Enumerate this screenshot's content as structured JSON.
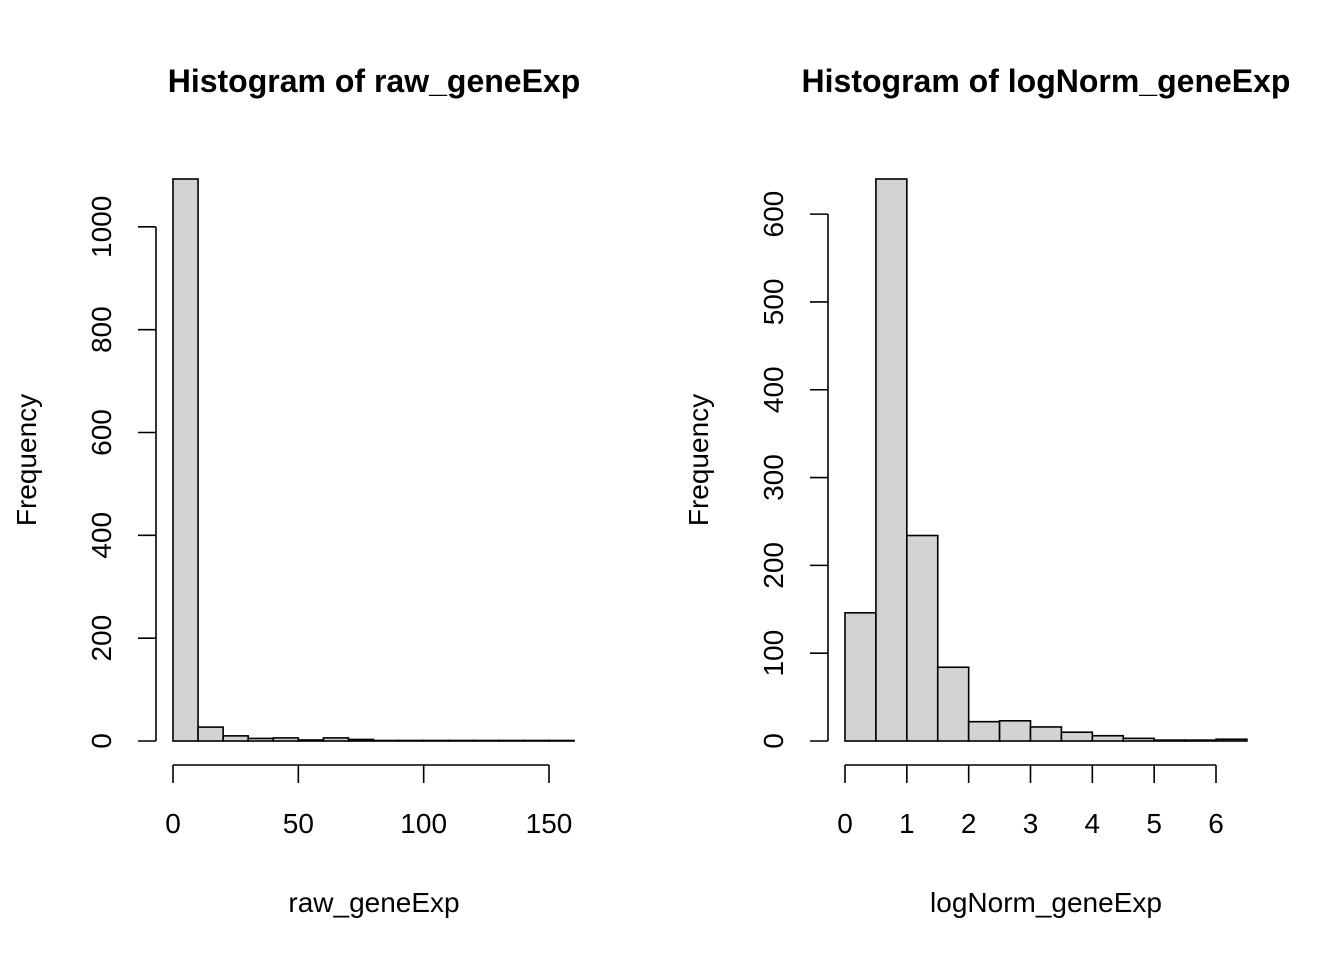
{
  "chart_data": [
    {
      "type": "bar",
      "title": "Histogram of raw_geneExp",
      "xlabel": "raw_geneExp",
      "ylabel": "Frequency",
      "bin_edges": [
        0,
        10,
        20,
        30,
        40,
        50,
        60,
        70,
        80,
        90,
        100,
        110,
        120,
        130,
        140,
        150,
        160
      ],
      "values": [
        1093,
        27,
        10,
        5,
        6,
        2,
        6,
        3,
        1,
        1,
        1,
        1,
        1,
        1,
        1,
        1
      ],
      "xlim": [
        0,
        160
      ],
      "ylim": [
        0,
        1093
      ],
      "x_ticks": [
        0,
        50,
        100,
        150
      ],
      "y_ticks": [
        0,
        200,
        400,
        600,
        800,
        1000
      ],
      "grid": false
    },
    {
      "type": "bar",
      "title": "Histogram of logNorm_geneExp",
      "xlabel": "logNorm_geneExp",
      "ylabel": "Frequency",
      "bin_edges": [
        0,
        0.5,
        1,
        1.5,
        2,
        2.5,
        3,
        3.5,
        4,
        4.5,
        5,
        5.5,
        6,
        6.5
      ],
      "values": [
        146,
        640,
        234,
        84,
        22,
        23,
        16,
        10,
        6,
        3,
        1,
        1,
        2
      ],
      "xlim": [
        0,
        6.5
      ],
      "ylim": [
        0,
        640
      ],
      "x_ticks": [
        0,
        1,
        2,
        3,
        4,
        5,
        6
      ],
      "y_ticks": [
        0,
        100,
        200,
        300,
        400,
        500,
        600
      ],
      "grid": false
    }
  ]
}
